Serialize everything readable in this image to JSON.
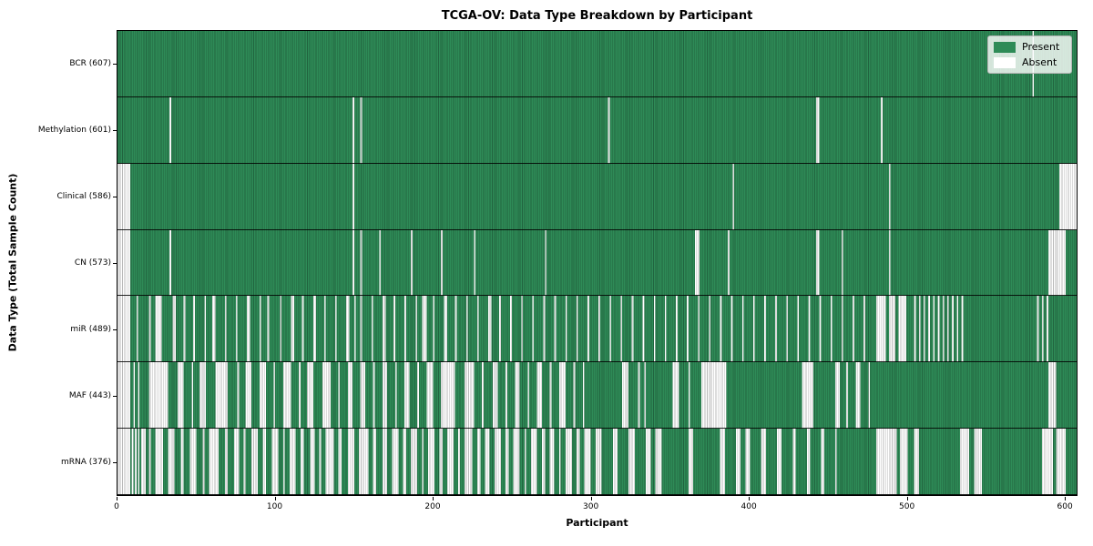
{
  "figure": {
    "title": "TCGA-OV: Data Type Breakdown by Participant",
    "xlabel": "Participant",
    "ylabel": "Data Type (Total Sample Count)"
  },
  "legend": {
    "present_label": "Present",
    "absent_label": "Absent"
  },
  "colors": {
    "present": "#2E8B57",
    "absent": "#FFFFFF",
    "bar_edge": "rgba(0,0,0,0.28)",
    "axis": "#000000",
    "legend_bg": "rgba(255,255,255,0.8)",
    "legend_border": "#b6b6b6"
  },
  "chart_data": {
    "type": "heatmap",
    "title": "TCGA-OV: Data Type Breakdown by Participant",
    "xlabel": "Participant",
    "ylabel": "Data Type (Total Sample Count)",
    "legend": [
      "Present",
      "Absent"
    ],
    "legend_position": "upper right",
    "grid": false,
    "x_range": [
      0,
      608
    ],
    "n_participants": 608,
    "x_ticks": [
      0,
      100,
      200,
      300,
      400,
      500,
      600
    ],
    "cell_values": {
      "present": 1,
      "absent": 0
    },
    "rows": [
      {
        "name": "BCR",
        "label": "BCR (607)",
        "present_count": 607,
        "absent_ranges": [
          [
            580,
            581
          ]
        ]
      },
      {
        "name": "Methylation",
        "label": "Methylation (601)",
        "present_count": 601,
        "absent_ranges": [
          [
            33,
            34
          ],
          [
            149,
            150
          ],
          [
            154,
            155
          ],
          [
            311,
            312
          ],
          [
            443,
            445
          ],
          [
            484,
            485
          ]
        ]
      },
      {
        "name": "Clinical",
        "label": "Clinical (586)",
        "present_count": 586,
        "absent_ranges": [
          [
            0,
            8
          ],
          [
            149,
            150
          ],
          [
            390,
            391
          ],
          [
            489,
            490
          ],
          [
            597,
            608
          ]
        ]
      },
      {
        "name": "CN",
        "label": "CN (573)",
        "present_count": 573,
        "absent_ranges": [
          [
            0,
            8
          ],
          [
            33,
            34
          ],
          [
            149,
            150
          ],
          [
            154,
            155
          ],
          [
            166,
            167
          ],
          [
            186,
            187
          ],
          [
            205,
            206
          ],
          [
            226,
            227
          ],
          [
            271,
            272
          ],
          [
            366,
            369
          ],
          [
            387,
            388
          ],
          [
            443,
            445
          ],
          [
            459,
            460
          ],
          [
            489,
            490
          ],
          [
            590,
            601
          ]
        ]
      },
      {
        "name": "miR",
        "label": "miR (489)",
        "present_count": 489,
        "absent_ranges": [
          [
            0,
            8
          ],
          [
            12,
            13
          ],
          [
            20,
            21
          ],
          [
            24,
            28
          ],
          [
            35,
            37
          ],
          [
            42,
            43
          ],
          [
            48,
            49
          ],
          [
            55,
            56
          ],
          [
            60,
            62
          ],
          [
            68,
            69
          ],
          [
            75,
            76
          ],
          [
            82,
            84
          ],
          [
            90,
            91
          ],
          [
            95,
            96
          ],
          [
            103,
            104
          ],
          [
            110,
            112
          ],
          [
            117,
            118
          ],
          [
            124,
            126
          ],
          [
            131,
            132
          ],
          [
            138,
            139
          ],
          [
            145,
            147
          ],
          [
            150,
            151
          ],
          [
            154,
            155
          ],
          [
            161,
            162
          ],
          [
            168,
            170
          ],
          [
            175,
            176
          ],
          [
            182,
            183
          ],
          [
            189,
            190
          ],
          [
            193,
            196
          ],
          [
            200,
            201
          ],
          [
            207,
            209
          ],
          [
            214,
            215
          ],
          [
            221,
            222
          ],
          [
            228,
            229
          ],
          [
            235,
            237
          ],
          [
            242,
            243
          ],
          [
            249,
            250
          ],
          [
            256,
            257
          ],
          [
            263,
            264
          ],
          [
            270,
            271
          ],
          [
            277,
            278
          ],
          [
            284,
            285
          ],
          [
            291,
            292
          ],
          [
            298,
            299
          ],
          [
            305,
            306
          ],
          [
            312,
            313
          ],
          [
            319,
            320
          ],
          [
            326,
            327
          ],
          [
            333,
            334
          ],
          [
            340,
            341
          ],
          [
            347,
            348
          ],
          [
            354,
            355
          ],
          [
            361,
            362
          ],
          [
            368,
            369
          ],
          [
            375,
            376
          ],
          [
            382,
            383
          ],
          [
            389,
            390
          ],
          [
            396,
            397
          ],
          [
            403,
            404
          ],
          [
            410,
            411
          ],
          [
            417,
            418
          ],
          [
            424,
            425
          ],
          [
            431,
            432
          ],
          [
            438,
            439
          ],
          [
            445,
            446
          ],
          [
            452,
            453
          ],
          [
            459,
            460
          ],
          [
            466,
            467
          ],
          [
            473,
            474
          ],
          [
            481,
            487
          ],
          [
            489,
            493
          ],
          [
            495,
            500
          ],
          [
            505,
            506
          ],
          [
            508,
            509
          ],
          [
            511,
            512
          ],
          [
            514,
            515
          ],
          [
            517,
            518
          ],
          [
            520,
            521
          ],
          [
            523,
            524
          ],
          [
            526,
            527
          ],
          [
            529,
            530
          ],
          [
            532,
            533
          ],
          [
            535,
            536
          ],
          [
            583,
            584
          ],
          [
            586,
            587
          ],
          [
            589,
            590
          ]
        ]
      },
      {
        "name": "MAF",
        "label": "MAF (443)",
        "present_count": 443,
        "absent_ranges": [
          [
            0,
            8
          ],
          [
            10,
            11
          ],
          [
            13,
            14
          ],
          [
            20,
            32
          ],
          [
            38,
            42
          ],
          [
            47,
            48
          ],
          [
            52,
            56
          ],
          [
            62,
            70
          ],
          [
            76,
            77
          ],
          [
            81,
            85
          ],
          [
            90,
            94
          ],
          [
            99,
            100
          ],
          [
            105,
            110
          ],
          [
            115,
            116
          ],
          [
            120,
            124
          ],
          [
            130,
            135
          ],
          [
            140,
            141
          ],
          [
            146,
            149
          ],
          [
            154,
            157
          ],
          [
            162,
            163
          ],
          [
            168,
            171
          ],
          [
            176,
            177
          ],
          [
            182,
            185
          ],
          [
            190,
            191
          ],
          [
            196,
            200
          ],
          [
            205,
            214
          ],
          [
            220,
            226
          ],
          [
            231,
            232
          ],
          [
            238,
            241
          ],
          [
            246,
            247
          ],
          [
            252,
            255
          ],
          [
            260,
            261
          ],
          [
            266,
            269
          ],
          [
            274,
            275
          ],
          [
            280,
            284
          ],
          [
            289,
            290
          ],
          [
            295,
            296
          ],
          [
            320,
            324
          ],
          [
            330,
            331
          ],
          [
            334,
            335
          ],
          [
            352,
            356
          ],
          [
            362,
            363
          ],
          [
            370,
            386
          ],
          [
            434,
            441
          ],
          [
            455,
            458
          ],
          [
            462,
            463
          ],
          [
            468,
            471
          ],
          [
            476,
            477
          ],
          [
            590,
            595
          ]
        ]
      },
      {
        "name": "mRNA",
        "label": "mRNA (376)",
        "present_count": 376,
        "absent_ranges": [
          [
            0,
            8
          ],
          [
            9,
            10
          ],
          [
            11,
            12
          ],
          [
            13,
            14
          ],
          [
            15,
            18
          ],
          [
            20,
            21
          ],
          [
            24,
            29
          ],
          [
            32,
            36
          ],
          [
            40,
            42
          ],
          [
            46,
            50
          ],
          [
            54,
            55
          ],
          [
            58,
            64
          ],
          [
            68,
            70
          ],
          [
            74,
            77
          ],
          [
            80,
            81
          ],
          [
            85,
            89
          ],
          [
            92,
            94
          ],
          [
            98,
            102
          ],
          [
            105,
            106
          ],
          [
            109,
            113
          ],
          [
            116,
            118
          ],
          [
            122,
            125
          ],
          [
            128,
            129
          ],
          [
            132,
            137
          ],
          [
            140,
            142
          ],
          [
            146,
            150
          ],
          [
            153,
            159
          ],
          [
            162,
            164
          ],
          [
            168,
            171
          ],
          [
            174,
            178
          ],
          [
            181,
            183
          ],
          [
            186,
            190
          ],
          [
            193,
            194
          ],
          [
            197,
            201
          ],
          [
            204,
            206
          ],
          [
            209,
            213
          ],
          [
            216,
            217
          ],
          [
            220,
            225
          ],
          [
            228,
            230
          ],
          [
            233,
            236
          ],
          [
            239,
            243
          ],
          [
            246,
            248
          ],
          [
            251,
            255
          ],
          [
            258,
            259
          ],
          [
            262,
            266
          ],
          [
            269,
            271
          ],
          [
            274,
            277
          ],
          [
            280,
            281
          ],
          [
            284,
            288
          ],
          [
            291,
            293
          ],
          [
            296,
            300
          ],
          [
            303,
            307
          ],
          [
            314,
            317
          ],
          [
            324,
            328
          ],
          [
            335,
            338
          ],
          [
            341,
            345
          ],
          [
            362,
            365
          ],
          [
            382,
            385
          ],
          [
            392,
            395
          ],
          [
            398,
            401
          ],
          [
            408,
            411
          ],
          [
            418,
            421
          ],
          [
            428,
            430
          ],
          [
            437,
            439
          ],
          [
            446,
            448
          ],
          [
            455,
            456
          ],
          [
            481,
            494
          ],
          [
            496,
            501
          ],
          [
            505,
            508
          ],
          [
            534,
            540
          ],
          [
            543,
            548
          ],
          [
            586,
            593
          ],
          [
            595,
            601
          ]
        ]
      }
    ]
  }
}
